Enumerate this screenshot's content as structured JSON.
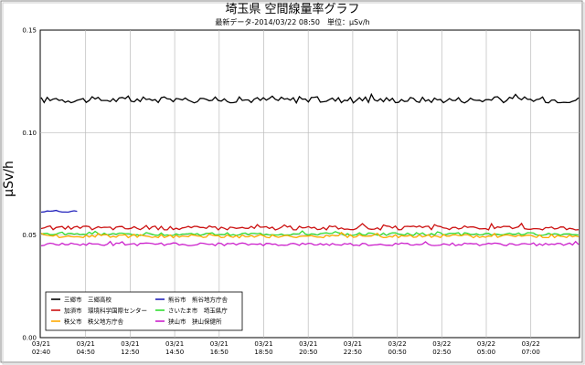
{
  "chart_data": {
    "type": "line",
    "title": "埼玉県 空間線量率グラフ",
    "subtitle": "最新データ-2014/03/22 08:50　単位：μSv/h",
    "ylabel": "μSv/h",
    "ylim": [
      0,
      0.15
    ],
    "yticks": [
      "0.00",
      "0.05",
      "0.10",
      "0.15"
    ],
    "ytick_values": [
      0,
      0.05,
      0.1,
      0.15
    ],
    "x_ticks": [
      {
        "date": "03/21",
        "time": "02:40"
      },
      {
        "date": "03/21",
        "time": "04:50"
      },
      {
        "date": "03/21",
        "time": "12:50"
      },
      {
        "date": "03/21",
        "time": "14:50"
      },
      {
        "date": "03/21",
        "time": "16:50"
      },
      {
        "date": "03/21",
        "time": "18:50"
      },
      {
        "date": "03/21",
        "time": "20:50"
      },
      {
        "date": "03/21",
        "time": "22:50"
      },
      {
        "date": "03/22",
        "time": "00:50"
      },
      {
        "date": "03/22",
        "time": "02:50"
      },
      {
        "date": "03/22",
        "time": "05:00"
      },
      {
        "date": "03/22",
        "time": "07:00"
      }
    ],
    "grid": true,
    "legend_position": "bottom-left",
    "n_points": 180,
    "series": [
      {
        "name": "三郷市　三郷高校",
        "color": "#000000",
        "base": 0.116,
        "amp": 0.0015,
        "start": 0,
        "end": 179
      },
      {
        "name": "熊谷市　熊谷地方庁舎",
        "color": "#2222bb",
        "base": 0.0615,
        "amp": 0.0004,
        "start": 0,
        "end": 12
      },
      {
        "name": "加須市　環境科学国際センター",
        "color": "#cc1111",
        "base": 0.0535,
        "amp": 0.001,
        "start": 0,
        "end": 179
      },
      {
        "name": "さいたま市　埼玉県庁",
        "color": "#33dd33",
        "base": 0.0505,
        "amp": 0.0007,
        "start": 0,
        "end": 179
      },
      {
        "name": "秩父市　秩父地方庁舎",
        "color": "#ffaa00",
        "base": 0.0495,
        "amp": 0.0008,
        "start": 0,
        "end": 179
      },
      {
        "name": "狭山市　狭山保健所",
        "color": "#cc22cc",
        "base": 0.0455,
        "amp": 0.0007,
        "start": 0,
        "end": 179
      }
    ]
  }
}
